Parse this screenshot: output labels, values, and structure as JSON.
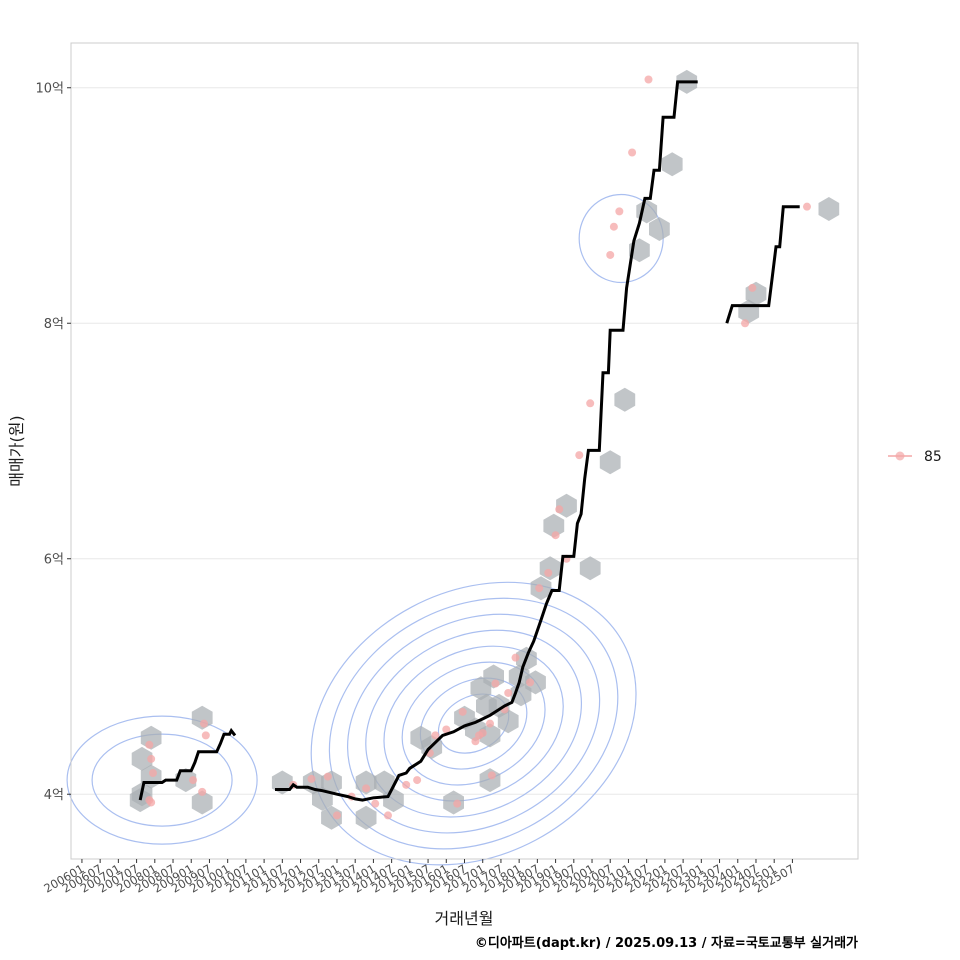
{
  "chart_data": {
    "type": "line",
    "title": "",
    "xlabel": "거래년월",
    "ylabel": "매매가(원)",
    "x_unit": "decimal-year",
    "xlim": [
      2005.7,
      2027.3
    ],
    "ylim": [
      3.45,
      10.38
    ],
    "y_ticks": [
      {
        "value": 4,
        "label": "4억"
      },
      {
        "value": 6,
        "label": "6억"
      },
      {
        "value": 8,
        "label": "8억"
      },
      {
        "value": 10,
        "label": "10억"
      }
    ],
    "x_ticks": [
      {
        "value": 2006.0,
        "label": "200601"
      },
      {
        "value": 2006.5,
        "label": "200607"
      },
      {
        "value": 2007.0,
        "label": "200701"
      },
      {
        "value": 2007.5,
        "label": "200707"
      },
      {
        "value": 2008.0,
        "label": "200801"
      },
      {
        "value": 2008.5,
        "label": "200807"
      },
      {
        "value": 2009.0,
        "label": "200901"
      },
      {
        "value": 2009.5,
        "label": "200907"
      },
      {
        "value": 2010.0,
        "label": "201001"
      },
      {
        "value": 2010.5,
        "label": "201007"
      },
      {
        "value": 2011.0,
        "label": "201101"
      },
      {
        "value": 2011.5,
        "label": "201107"
      },
      {
        "value": 2012.0,
        "label": "201201"
      },
      {
        "value": 2012.5,
        "label": "201207"
      },
      {
        "value": 2013.0,
        "label": "201301"
      },
      {
        "value": 2013.5,
        "label": "201307"
      },
      {
        "value": 2014.0,
        "label": "201401"
      },
      {
        "value": 2014.5,
        "label": "201407"
      },
      {
        "value": 2015.0,
        "label": "201501"
      },
      {
        "value": 2015.5,
        "label": "201507"
      },
      {
        "value": 2016.0,
        "label": "201601"
      },
      {
        "value": 2016.5,
        "label": "201607"
      },
      {
        "value": 2017.0,
        "label": "201701"
      },
      {
        "value": 2017.5,
        "label": "201707"
      },
      {
        "value": 2018.0,
        "label": "201801"
      },
      {
        "value": 2018.5,
        "label": "201807"
      },
      {
        "value": 2019.0,
        "label": "201901"
      },
      {
        "value": 2019.5,
        "label": "201907"
      },
      {
        "value": 2020.0,
        "label": "202001"
      },
      {
        "value": 2020.5,
        "label": "202007"
      },
      {
        "value": 2021.0,
        "label": "202101"
      },
      {
        "value": 2021.5,
        "label": "202107"
      },
      {
        "value": 2022.0,
        "label": "202201"
      },
      {
        "value": 2022.5,
        "label": "202207"
      },
      {
        "value": 2023.0,
        "label": "202301"
      },
      {
        "value": 2023.5,
        "label": "202307"
      },
      {
        "value": 2024.0,
        "label": "202401"
      },
      {
        "value": 2024.5,
        "label": "202407"
      },
      {
        "value": 2025.0,
        "label": "202501"
      },
      {
        "value": 2025.5,
        "label": "202507"
      }
    ],
    "legend": {
      "placement": "right",
      "entries": [
        {
          "label": "85",
          "color": "#f4a6a6"
        }
      ]
    },
    "colors": {
      "line": "#000000",
      "hex": "#a9aeb3",
      "point": "#f4a6a6",
      "contour": "#aabff0",
      "grid": "#e8e8e8",
      "panel_border": "#cccccc"
    },
    "series": [
      {
        "name": "price-trend-segment-1",
        "points": [
          [
            2007.6,
            3.95
          ],
          [
            2007.7,
            4.1
          ],
          [
            2008.2,
            4.1
          ],
          [
            2008.3,
            4.12
          ],
          [
            2008.6,
            4.12
          ],
          [
            2008.7,
            4.2
          ],
          [
            2009.0,
            4.2
          ],
          [
            2009.1,
            4.27
          ],
          [
            2009.2,
            4.36
          ],
          [
            2009.7,
            4.36
          ],
          [
            2009.8,
            4.43
          ],
          [
            2009.9,
            4.51
          ],
          [
            2010.05,
            4.51
          ],
          [
            2010.1,
            4.54
          ],
          [
            2010.2,
            4.5
          ]
        ]
      },
      {
        "name": "price-trend-segment-2",
        "points": [
          [
            2011.3,
            4.04
          ],
          [
            2011.7,
            4.04
          ],
          [
            2011.8,
            4.08
          ],
          [
            2011.9,
            4.06
          ],
          [
            2012.2,
            4.06
          ],
          [
            2012.4,
            4.04
          ],
          [
            2012.6,
            4.03
          ],
          [
            2013.0,
            4.0
          ],
          [
            2013.3,
            3.98
          ],
          [
            2013.5,
            3.96
          ],
          [
            2013.7,
            3.95
          ],
          [
            2014.0,
            3.97
          ],
          [
            2014.4,
            3.98
          ],
          [
            2014.6,
            4.1
          ],
          [
            2014.7,
            4.16
          ],
          [
            2014.9,
            4.18
          ],
          [
            2015.0,
            4.22
          ],
          [
            2015.3,
            4.28
          ],
          [
            2015.5,
            4.38
          ],
          [
            2015.7,
            4.44
          ],
          [
            2015.9,
            4.5
          ],
          [
            2016.2,
            4.53
          ],
          [
            2016.5,
            4.58
          ],
          [
            2016.8,
            4.61
          ],
          [
            2017.0,
            4.64
          ],
          [
            2017.2,
            4.67
          ],
          [
            2017.4,
            4.71
          ],
          [
            2017.6,
            4.75
          ],
          [
            2017.8,
            4.78
          ],
          [
            2017.9,
            4.86
          ],
          [
            2018.0,
            4.95
          ],
          [
            2018.1,
            5.08
          ],
          [
            2018.25,
            5.2
          ],
          [
            2018.4,
            5.3
          ],
          [
            2018.6,
            5.48
          ],
          [
            2018.75,
            5.62
          ],
          [
            2018.9,
            5.73
          ],
          [
            2019.1,
            5.73
          ],
          [
            2019.2,
            6.02
          ],
          [
            2019.5,
            6.02
          ],
          [
            2019.6,
            6.3
          ],
          [
            2019.7,
            6.38
          ],
          [
            2019.8,
            6.68
          ],
          [
            2019.9,
            6.92
          ],
          [
            2020.2,
            6.92
          ],
          [
            2020.3,
            7.58
          ],
          [
            2020.45,
            7.58
          ],
          [
            2020.5,
            7.94
          ],
          [
            2020.85,
            7.94
          ],
          [
            2020.95,
            8.3
          ],
          [
            2021.15,
            8.7
          ],
          [
            2021.3,
            8.85
          ],
          [
            2021.45,
            9.06
          ],
          [
            2021.6,
            9.06
          ],
          [
            2021.7,
            9.3
          ],
          [
            2021.85,
            9.3
          ],
          [
            2021.95,
            9.75
          ],
          [
            2022.25,
            9.75
          ],
          [
            2022.35,
            10.05
          ],
          [
            2022.9,
            10.05
          ]
        ]
      },
      {
        "name": "price-trend-segment-3",
        "points": [
          [
            2023.7,
            8.0
          ],
          [
            2023.85,
            8.15
          ],
          [
            2024.25,
            8.15
          ],
          [
            2024.55,
            8.15
          ],
          [
            2024.85,
            8.15
          ],
          [
            2024.95,
            8.4
          ],
          [
            2025.05,
            8.65
          ],
          [
            2025.15,
            8.65
          ],
          [
            2025.25,
            8.99
          ],
          [
            2025.7,
            8.99
          ]
        ]
      }
    ],
    "hexbins": [
      [
        2007.9,
        4.48
      ],
      [
        2007.65,
        4.3
      ],
      [
        2007.9,
        4.15
      ],
      [
        2007.65,
        4.0
      ],
      [
        2007.6,
        3.95
      ],
      [
        2008.85,
        4.12
      ],
      [
        2009.3,
        4.65
      ],
      [
        2009.3,
        3.93
      ],
      [
        2011.5,
        4.1
      ],
      [
        2012.35,
        4.1
      ],
      [
        2012.6,
        3.96
      ],
      [
        2012.85,
        4.1
      ],
      [
        2012.85,
        3.8
      ],
      [
        2013.8,
        4.1
      ],
      [
        2013.8,
        3.8
      ],
      [
        2014.3,
        4.1
      ],
      [
        2014.55,
        3.95
      ],
      [
        2015.3,
        4.48
      ],
      [
        2015.6,
        4.4
      ],
      [
        2016.2,
        3.93
      ],
      [
        2016.5,
        4.65
      ],
      [
        2016.8,
        4.55
      ],
      [
        2016.95,
        4.9
      ],
      [
        2017.1,
        4.75
      ],
      [
        2017.3,
        5.0
      ],
      [
        2017.45,
        4.75
      ],
      [
        2017.2,
        4.5
      ],
      [
        2017.2,
        4.12
      ],
      [
        2017.7,
        4.62
      ],
      [
        2018.0,
        5.0
      ],
      [
        2018.05,
        4.85
      ],
      [
        2018.2,
        5.15
      ],
      [
        2018.45,
        4.95
      ],
      [
        2018.6,
        5.75
      ],
      [
        2018.85,
        5.92
      ],
      [
        2018.95,
        6.28
      ],
      [
        2019.3,
        6.45
      ],
      [
        2019.95,
        5.92
      ],
      [
        2020.5,
        6.82
      ],
      [
        2020.9,
        7.35
      ],
      [
        2021.3,
        8.62
      ],
      [
        2021.5,
        8.95
      ],
      [
        2021.85,
        8.8
      ],
      [
        2022.2,
        9.35
      ],
      [
        2022.6,
        10.05
      ],
      [
        2024.3,
        8.1
      ],
      [
        2024.5,
        8.25
      ],
      [
        2026.5,
        8.97
      ]
    ],
    "points": [
      [
        2007.85,
        4.42
      ],
      [
        2007.9,
        4.3
      ],
      [
        2007.95,
        4.18
      ],
      [
        2007.85,
        3.95
      ],
      [
        2007.9,
        3.93
      ],
      [
        2009.05,
        4.12
      ],
      [
        2009.35,
        4.6
      ],
      [
        2009.4,
        4.5
      ],
      [
        2009.3,
        4.02
      ],
      [
        2011.8,
        4.08
      ],
      [
        2012.3,
        4.13
      ],
      [
        2012.75,
        4.15
      ],
      [
        2013.0,
        3.82
      ],
      [
        2013.4,
        3.98
      ],
      [
        2013.8,
        4.05
      ],
      [
        2014.05,
        3.92
      ],
      [
        2014.4,
        3.82
      ],
      [
        2014.9,
        4.08
      ],
      [
        2015.2,
        4.12
      ],
      [
        2015.55,
        4.35
      ],
      [
        2015.7,
        4.5
      ],
      [
        2016.0,
        4.55
      ],
      [
        2016.3,
        3.92
      ],
      [
        2016.45,
        4.7
      ],
      [
        2016.8,
        4.45
      ],
      [
        2016.9,
        4.5
      ],
      [
        2017.0,
        4.52
      ],
      [
        2017.2,
        4.6
      ],
      [
        2017.25,
        4.16
      ],
      [
        2017.35,
        4.94
      ],
      [
        2017.6,
        4.72
      ],
      [
        2017.7,
        4.86
      ],
      [
        2017.9,
        5.16
      ],
      [
        2018.3,
        4.95
      ],
      [
        2018.55,
        5.75
      ],
      [
        2018.8,
        5.88
      ],
      [
        2019.0,
        6.2
      ],
      [
        2019.1,
        6.42
      ],
      [
        2019.3,
        6.0
      ],
      [
        2019.65,
        6.88
      ],
      [
        2019.95,
        7.32
      ],
      [
        2020.5,
        8.58
      ],
      [
        2020.75,
        8.95
      ],
      [
        2020.6,
        8.82
      ],
      [
        2021.1,
        9.45
      ],
      [
        2021.55,
        10.07
      ],
      [
        2024.2,
        8.0
      ],
      [
        2024.4,
        8.3
      ],
      [
        2025.9,
        8.99
      ]
    ],
    "kde_peaks": [
      {
        "center": [
          2016.75,
          4.6
        ],
        "levels": 8
      },
      {
        "center": [
          2008.2,
          4.12
        ],
        "levels": 2
      },
      {
        "center": [
          2020.8,
          8.72
        ],
        "levels": 1
      }
    ]
  },
  "legend_label": "85",
  "caption": "©디아파트(dapt.kr) / 2025.09.13 / 자료=국토교통부 실거래가"
}
